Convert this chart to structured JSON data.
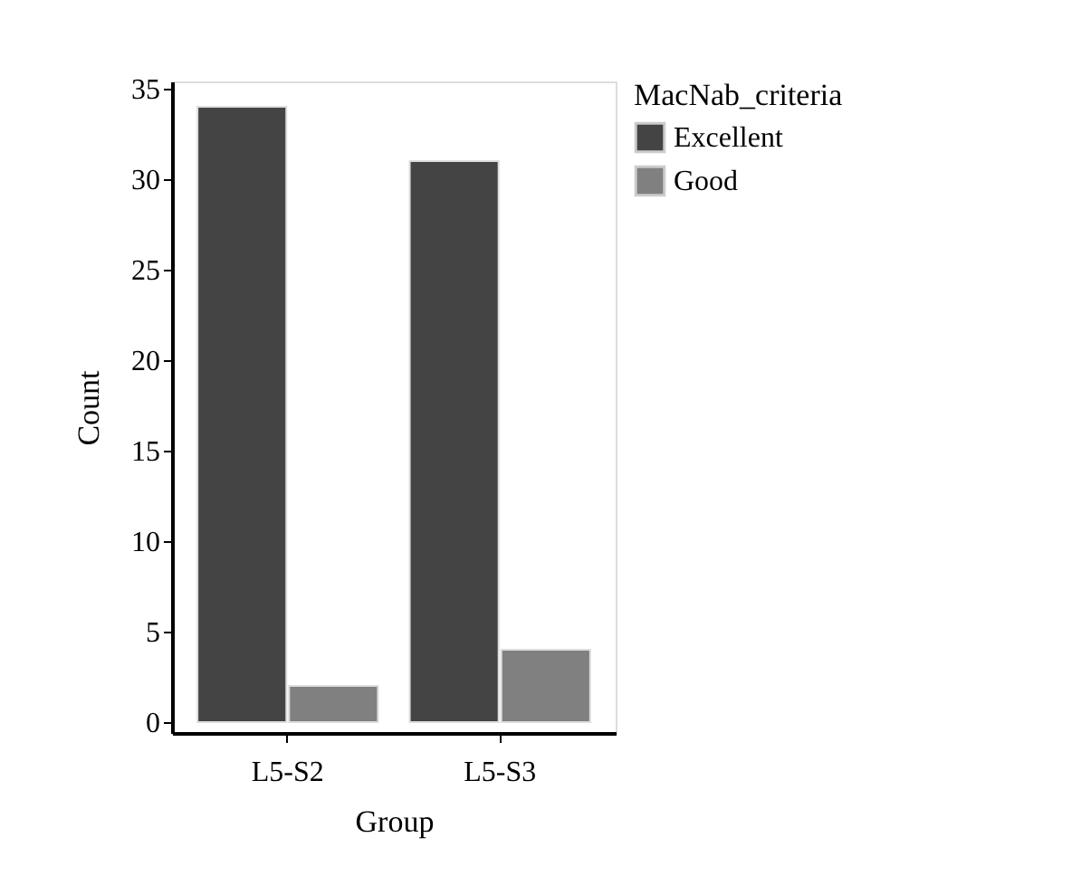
{
  "chart_data": {
    "type": "bar",
    "xlabel": "Group",
    "ylabel": "Count",
    "legend_title": "MacNab_criteria",
    "categories": [
      "L5-S2",
      "L5-S3"
    ],
    "series": [
      {
        "name": "Excellent",
        "color": "#444444",
        "values": [
          34,
          31
        ]
      },
      {
        "name": "Good",
        "color": "#808080",
        "values": [
          2,
          4
        ]
      }
    ],
    "ylim": [
      -0.6,
      35.4
    ],
    "yticks": [
      0,
      5,
      10,
      15,
      20,
      25,
      30,
      35
    ],
    "grid": false,
    "legend": "top right"
  }
}
